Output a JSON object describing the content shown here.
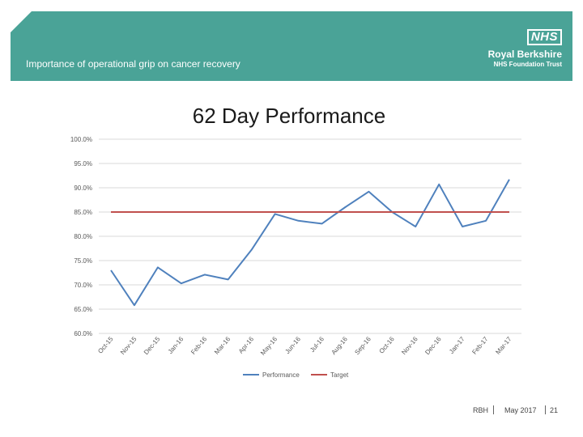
{
  "header": {
    "subtitle": "Importance of operational grip on cancer recovery",
    "logo": {
      "nhs": "NHS",
      "org_line1": "Royal Berkshire",
      "org_line2": "NHS Foundation Trust"
    }
  },
  "colors": {
    "banner": "#4aa397",
    "performance": "#4f81bd",
    "target": "#c0504d"
  },
  "chart_data": {
    "type": "line",
    "title": "62 Day Performance",
    "categories": [
      "Oct-15",
      "Nov-15",
      "Dec-15",
      "Jan-16",
      "Feb-16",
      "Mar-16",
      "Apr-16",
      "May-16",
      "Jun-16",
      "Jul-16",
      "Aug-16",
      "Sep-16",
      "Oct-16",
      "Nov-16",
      "Dec-16",
      "Jan-17",
      "Feb-17",
      "Mar-17"
    ],
    "series": [
      {
        "name": "Performance",
        "values": [
          73.0,
          65.8,
          73.6,
          70.3,
          72.1,
          71.1,
          77.2,
          84.6,
          83.2,
          82.6,
          86.0,
          89.2,
          85.0,
          82.0,
          90.7,
          82.0,
          83.2,
          91.7
        ]
      },
      {
        "name": "Target",
        "values": [
          85,
          85,
          85,
          85,
          85,
          85,
          85,
          85,
          85,
          85,
          85,
          85,
          85,
          85,
          85,
          85,
          85,
          85
        ]
      }
    ],
    "ylim": [
      60,
      100
    ],
    "yticks": [
      "60.0%",
      "65.0%",
      "70.0%",
      "75.0%",
      "80.0%",
      "85.0%",
      "90.0%",
      "95.0%",
      "100.0%"
    ],
    "grid": true,
    "legend_position": "bottom"
  },
  "footer": {
    "org": "RBH",
    "date": "May 2017",
    "page": "21"
  }
}
